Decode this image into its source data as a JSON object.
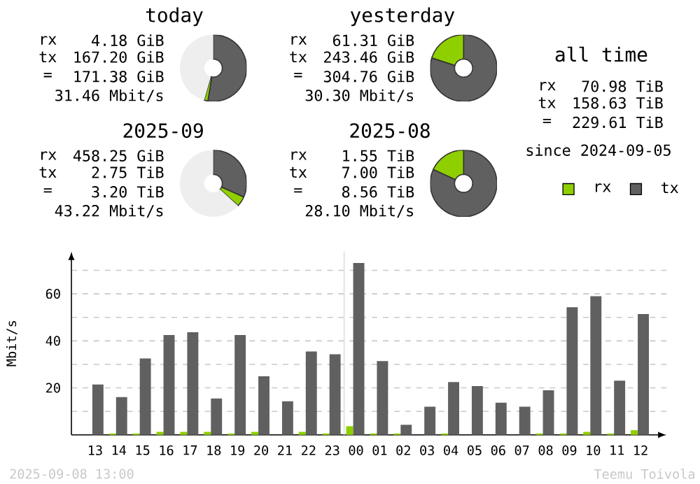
{
  "chart_data": [
    {
      "type": "donut",
      "title": "today",
      "categories": [
        null,
        null,
        null
      ],
      "values": [
        52.6,
        1.8,
        45.6
      ],
      "colors": [
        "#606060",
        "#8fcf00",
        "#eeeeee"
      ],
      "annotations": [
        "rx",
        "4.18 GiB",
        "tx",
        "167.20 GiB",
        "=",
        "171.38 GiB",
        "31.46 Mbit/s"
      ]
    },
    {
      "type": "donut",
      "title": "yesterday",
      "categories": [
        null,
        null
      ],
      "values": [
        79.9,
        20.1
      ],
      "colors": [
        "#606060",
        "#8fcf00"
      ],
      "annotations": [
        "rx",
        "61.31 GiB",
        "tx",
        "243.46 GiB",
        "=",
        "304.76 GiB",
        "30.30 Mbit/s"
      ]
    },
    {
      "type": "donut",
      "title": "2025-09",
      "categories": [
        null,
        null,
        null
      ],
      "values": [
        31.7,
        5.0,
        63.3
      ],
      "colors": [
        "#606060",
        "#8fcf00",
        "#eeeeee"
      ],
      "annotations": [
        "rx",
        "458.25 GiB",
        "tx",
        "2.75 TiB",
        "=",
        "3.20 TiB",
        "43.22 Mbit/s"
      ]
    },
    {
      "type": "donut",
      "title": "2025-08",
      "categories": [
        null,
        null
      ],
      "values": [
        81.9,
        18.1
      ],
      "colors": [
        "#606060",
        "#8fcf00"
      ],
      "annotations": [
        "rx",
        "1.55 TiB",
        "tx",
        "7.00 TiB",
        "=",
        "8.56 TiB",
        "28.10 Mbit/s"
      ]
    },
    {
      "type": "other",
      "title": "all time",
      "annotations": [
        "rx",
        "70.98 TiB",
        "tx",
        "158.63 TiB",
        "=",
        "229.61 TiB",
        "since 2024-09-05"
      ]
    },
    {
      "type": "bar",
      "ylabel": "Mbit/s",
      "categories": [
        "13",
        "14",
        "15",
        "16",
        "17",
        "18",
        "19",
        "20",
        "21",
        "22",
        "23",
        "00",
        "01",
        "02",
        "03",
        "04",
        "05",
        "06",
        "07",
        "08",
        "09",
        "10",
        "11",
        "12"
      ],
      "series": [
        {
          "name": "rx",
          "color": "#8fcf00",
          "values": [
            0,
            0.6,
            0.6,
            1.3,
            1.3,
            1.3,
            0.6,
            1.3,
            0,
            1.3,
            0.6,
            3.7,
            0.6,
            0.6,
            0,
            0.6,
            0,
            0,
            0,
            0.6,
            0.6,
            1.3,
            0.6,
            2.0
          ]
        },
        {
          "name": "tx",
          "color": "#606060",
          "values": [
            21.4,
            16.1,
            32.5,
            42.5,
            43.7,
            15.5,
            42.5,
            24.9,
            14.3,
            35.5,
            34.3,
            73.1,
            31.4,
            4.3,
            12.0,
            22.5,
            20.8,
            13.7,
            12.0,
            19.0,
            54.3,
            59.0,
            23.1,
            51.4
          ]
        }
      ],
      "ylim": [
        0,
        78
      ],
      "yticks": [
        {
          "value": 10,
          "label": null
        },
        20,
        {
          "value": 30,
          "label": null
        },
        40,
        {
          "value": 50,
          "label": null
        },
        60,
        {
          "value": 70,
          "label": null
        }
      ],
      "grid": "y",
      "legend": "top right",
      "ref_lines": [
        {
          "axis": "x",
          "value": "00",
          "color": "#dddddd"
        }
      ],
      "annotations": [
        "2025-09-08 13:00",
        "Teemu Toivola"
      ]
    }
  ]
}
